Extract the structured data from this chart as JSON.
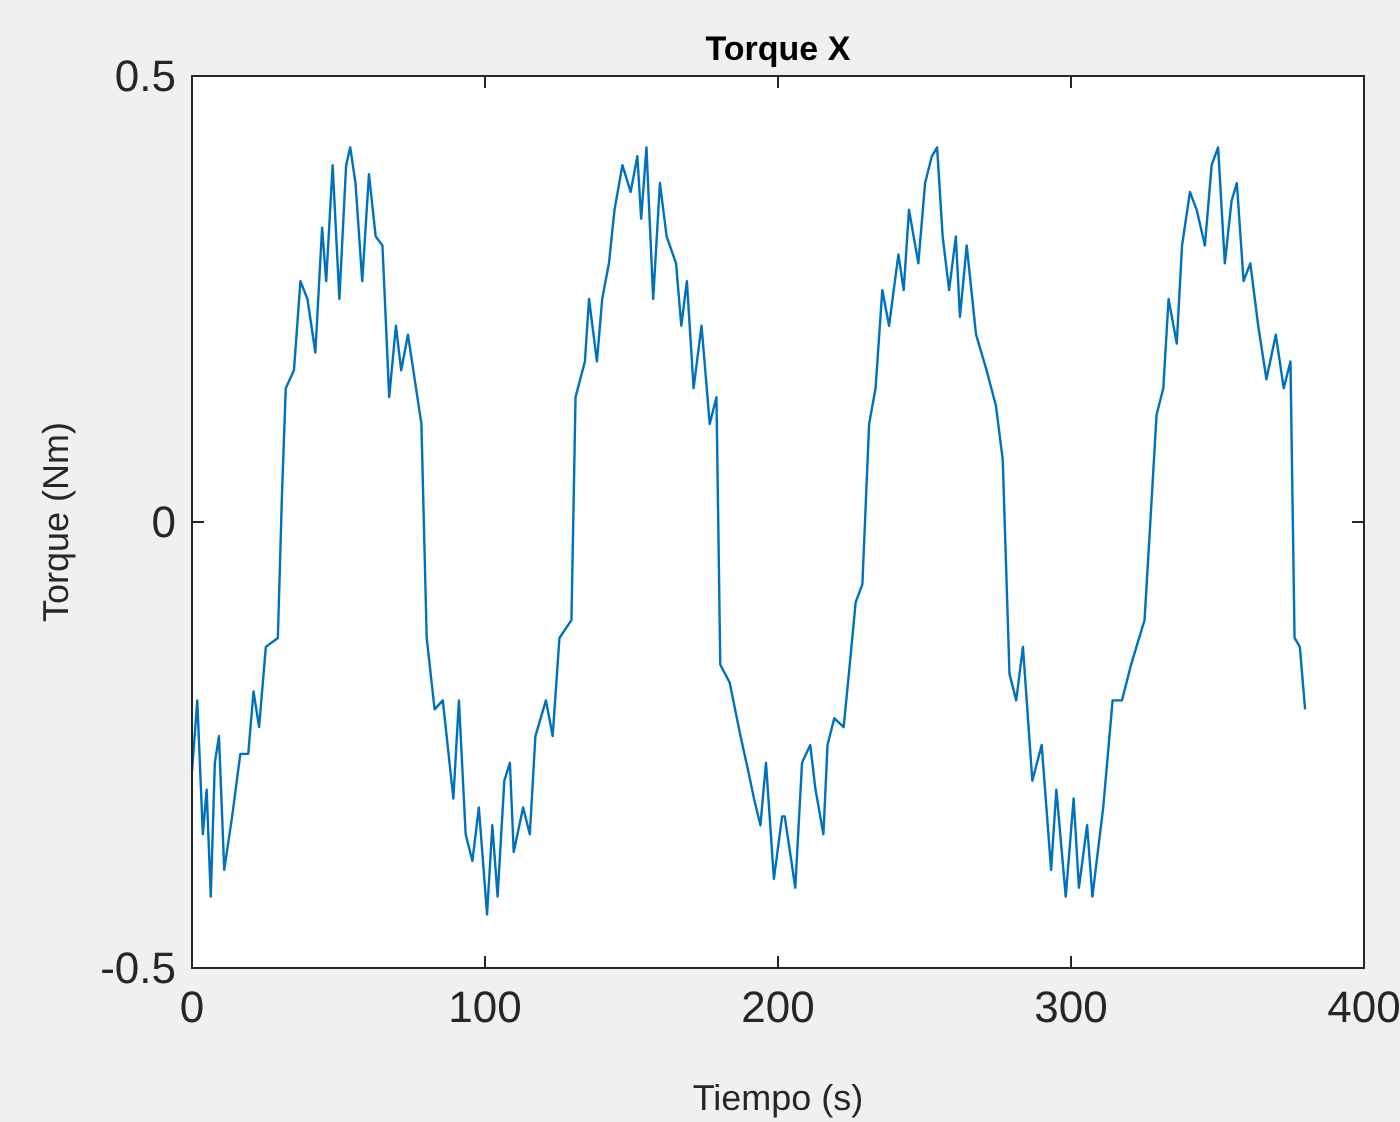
{
  "chart_data": {
    "type": "line",
    "title": "Torque X",
    "xlabel": "Tiempo (s)",
    "ylabel": "Torque (Nm)",
    "xlim": [
      0,
      400
    ],
    "xticks": [
      0,
      100,
      200,
      300,
      400
    ],
    "ylim": [
      -0.5,
      0.5
    ],
    "yticks": [
      -0.5,
      0,
      0.5
    ],
    "grid": false,
    "series": [
      {
        "color": "#0072bd",
        "x": [
          0,
          1.8,
          3.7,
          5,
          6.4,
          7.8,
          9.2,
          11,
          13.7,
          16.5,
          19.2,
          21,
          22.9,
          25.2,
          29.3,
          30.7,
          32,
          34.8,
          37,
          39.4,
          42.1,
          44.4,
          45.8,
          48,
          50.3,
          52.6,
          54,
          55.8,
          58.1,
          60.4,
          62.7,
          65,
          67.3,
          69.6,
          71.4,
          73.7,
          78.3,
          80.1,
          82.8,
          85.6,
          89.2,
          91.1,
          93.4,
          95.7,
          97.9,
          100.7,
          102.5,
          104.3,
          106.6,
          108.5,
          109.8,
          113,
          115.3,
          117.2,
          120.8,
          123.1,
          125.4,
          129.5,
          130.9,
          134.1,
          135.5,
          138.2,
          140,
          142.3,
          144.2,
          146.9,
          149.7,
          152,
          153.3,
          155.1,
          157.4,
          159.7,
          162,
          165.2,
          167,
          168.9,
          171.2,
          173.9,
          176.7,
          179,
          180.3,
          183.5,
          187.2,
          189.9,
          191.8,
          194,
          195.9,
          198.6,
          201.4,
          202.3,
          205.9,
          208.2,
          211,
          212.8,
          215.5,
          216.9,
          219.2,
          222.4,
          224.2,
          226.5,
          228.8,
          231.1,
          233.3,
          235.6,
          237.9,
          241.1,
          242.9,
          244.7,
          247.9,
          250.2,
          252.5,
          254.3,
          256.2,
          258.4,
          260.7,
          262.1,
          264.4,
          267.6,
          271.2,
          274.4,
          276.7,
          279,
          281.3,
          283.6,
          286.8,
          290,
          293.2,
          295,
          298.2,
          300.9,
          302.7,
          305.5,
          307.3,
          311,
          314.2,
          317.4,
          320.5,
          325.1,
          326.9,
          329.2,
          331.5,
          333.3,
          336.1,
          337.9,
          340.6,
          342.9,
          345.7,
          348,
          350.2,
          352.5,
          354.8,
          356.6,
          358.9,
          361.2,
          363.9,
          366.7,
          369.9,
          372.6,
          374.9,
          376.3,
          378.1,
          379.9
        ],
        "values": [
          -0.28,
          -0.2,
          -0.35,
          -0.3,
          -0.42,
          -0.27,
          -0.24,
          -0.39,
          -0.33,
          -0.26,
          -0.26,
          -0.19,
          -0.23,
          -0.14,
          -0.13,
          0.03,
          0.15,
          0.17,
          0.27,
          0.25,
          0.19,
          0.33,
          0.27,
          0.4,
          0.25,
          0.4,
          0.42,
          0.38,
          0.27,
          0.39,
          0.32,
          0.31,
          0.14,
          0.22,
          0.17,
          0.21,
          0.11,
          -0.13,
          -0.21,
          -0.2,
          -0.31,
          -0.2,
          -0.35,
          -0.38,
          -0.32,
          -0.44,
          -0.34,
          -0.42,
          -0.29,
          -0.27,
          -0.37,
          -0.32,
          -0.35,
          -0.24,
          -0.2,
          -0.24,
          -0.13,
          -0.11,
          0.14,
          0.18,
          0.25,
          0.18,
          0.25,
          0.29,
          0.35,
          0.4,
          0.37,
          0.41,
          0.34,
          0.42,
          0.25,
          0.38,
          0.32,
          0.29,
          0.22,
          0.27,
          0.15,
          0.22,
          0.11,
          0.14,
          -0.16,
          -0.18,
          -0.24,
          -0.28,
          -0.31,
          -0.34,
          -0.27,
          -0.4,
          -0.33,
          -0.33,
          -0.41,
          -0.27,
          -0.25,
          -0.3,
          -0.35,
          -0.25,
          -0.22,
          -0.23,
          -0.17,
          -0.09,
          -0.07,
          0.11,
          0.15,
          0.26,
          0.22,
          0.3,
          0.26,
          0.35,
          0.29,
          0.38,
          0.41,
          0.42,
          0.32,
          0.26,
          0.32,
          0.23,
          0.31,
          0.21,
          0.17,
          0.13,
          0.07,
          -0.17,
          -0.2,
          -0.14,
          -0.29,
          -0.25,
          -0.39,
          -0.3,
          -0.42,
          -0.31,
          -0.41,
          -0.34,
          -0.42,
          -0.32,
          -0.2,
          -0.2,
          -0.16,
          -0.11,
          -0.01,
          0.12,
          0.15,
          0.25,
          0.2,
          0.31,
          0.37,
          0.35,
          0.31,
          0.4,
          0.42,
          0.29,
          0.36,
          0.38,
          0.27,
          0.29,
          0.22,
          0.16,
          0.21,
          0.15,
          0.18,
          -0.13,
          -0.14,
          -0.21
        ]
      }
    ]
  }
}
